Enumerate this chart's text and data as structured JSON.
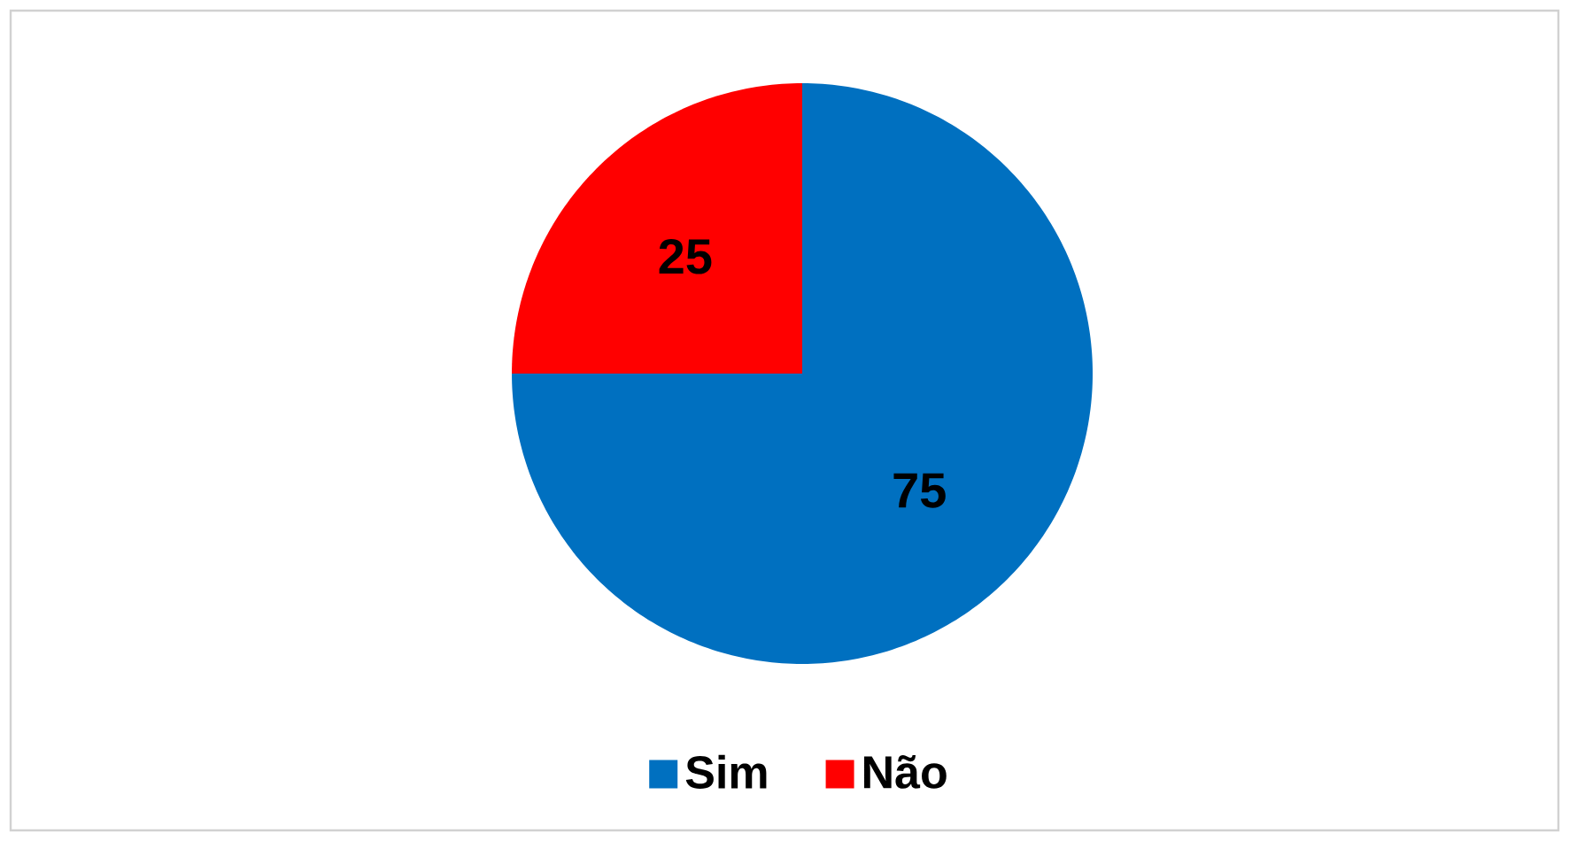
{
  "chart_data": {
    "type": "pie",
    "categories": [
      "Sim",
      "Não"
    ],
    "values": [
      75,
      25
    ],
    "colors": [
      "#0070c0",
      "#ff0000"
    ],
    "data_labels": true,
    "legend": "bottom"
  }
}
